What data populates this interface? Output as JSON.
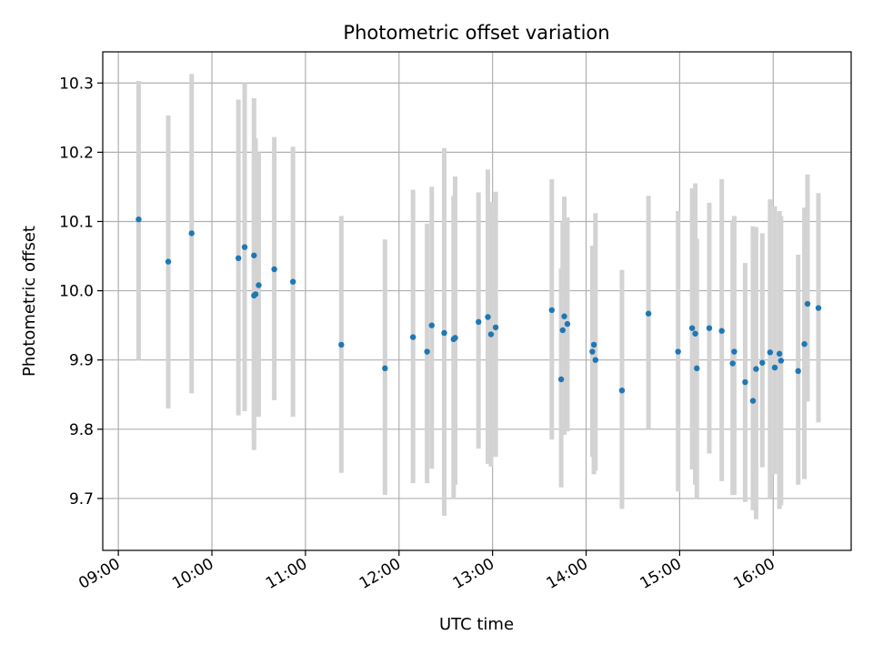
{
  "chart_data": {
    "type": "scatter",
    "title": "Photometric offset variation",
    "xlabel": "UTC time",
    "ylabel": "Photometric offset",
    "grid": true,
    "x_axis_kind": "time",
    "xlim": [
      "08:50",
      "16:50"
    ],
    "ylim": [
      9.625,
      10.345
    ],
    "x_ticks": [
      "09:00",
      "10:00",
      "11:00",
      "12:00",
      "13:00",
      "14:00",
      "15:00",
      "16:00"
    ],
    "y_ticks": [
      9.7,
      9.8,
      9.9,
      10.0,
      10.1,
      10.2,
      10.3
    ],
    "y_tick_labels": [
      "9.7",
      "9.8",
      "9.9",
      "10.0",
      "10.1",
      "10.2",
      "10.3"
    ],
    "colors": {
      "point": "#1f77b4",
      "errorbar": "#d3d3d3",
      "grid": "#b0b0b0"
    },
    "series": [
      {
        "x": [
          "09:13",
          "09:32",
          "09:47",
          "10:17",
          "10:21",
          "10:27",
          "10:27",
          "10:28",
          "10:30",
          "10:40",
          "10:52",
          "11:23",
          "11:51",
          "12:09",
          "12:18",
          "12:21",
          "12:29",
          "12:35",
          "12:36",
          "12:51",
          "12:57",
          "12:59",
          "13:02",
          "13:38",
          "13:44",
          "13:45",
          "13:46",
          "13:48",
          "14:04",
          "14:05",
          "14:06",
          "14:23",
          "14:40",
          "14:59",
          "15:08",
          "15:10",
          "15:11",
          "15:19",
          "15:27",
          "15:34",
          "15:35",
          "15:42",
          "15:47",
          "15:49",
          "15:53",
          "15:58",
          "16:01",
          "16:04",
          "16:05",
          "16:16",
          "16:20",
          "16:22",
          "16:29"
        ],
        "y": [
          10.103,
          10.042,
          10.083,
          10.047,
          10.063,
          10.051,
          9.993,
          9.995,
          10.008,
          10.031,
          10.013,
          9.922,
          9.888,
          9.933,
          9.912,
          9.95,
          9.939,
          9.93,
          9.932,
          9.955,
          9.962,
          9.937,
          9.947,
          9.972,
          9.872,
          9.943,
          9.963,
          9.952,
          9.912,
          9.922,
          9.9,
          9.856,
          9.967,
          9.912,
          9.946,
          9.938,
          9.888,
          9.946,
          9.942,
          9.895,
          9.912,
          9.868,
          9.841,
          9.887,
          9.896,
          9.911,
          9.889,
          9.909,
          9.899,
          9.884,
          9.923,
          9.981,
          9.975
        ],
        "yerr_low": [
          9.9,
          9.83,
          9.852,
          9.82,
          9.826,
          9.785,
          9.77,
          9.818,
          9.818,
          9.842,
          9.818,
          9.737,
          9.705,
          9.722,
          9.722,
          9.743,
          9.675,
          9.7,
          9.72,
          9.772,
          9.75,
          9.746,
          9.76,
          9.785,
          9.716,
          9.792,
          9.792,
          9.797,
          9.76,
          9.735,
          9.74,
          9.685,
          9.8,
          9.71,
          9.742,
          9.72,
          9.7,
          9.765,
          9.725,
          9.705,
          9.705,
          9.695,
          9.683,
          9.67,
          9.745,
          9.7,
          9.735,
          9.685,
          9.69,
          9.72,
          9.728,
          9.84,
          9.81
        ],
        "yerr_high": [
          10.303,
          10.253,
          10.313,
          10.276,
          10.3,
          10.278,
          10.205,
          10.22,
          10.2,
          10.222,
          10.208,
          10.108,
          10.074,
          10.146,
          10.097,
          10.15,
          10.206,
          10.137,
          10.165,
          10.142,
          10.175,
          10.128,
          10.143,
          10.161,
          10.032,
          10.1,
          10.136,
          10.106,
          10.065,
          10.065,
          10.112,
          10.03,
          10.137,
          10.115,
          10.148,
          10.155,
          10.075,
          10.127,
          10.161,
          10.102,
          10.108,
          10.04,
          10.093,
          10.092,
          10.083,
          10.132,
          10.122,
          10.115,
          10.108,
          10.052,
          10.12,
          10.168,
          10.141
        ]
      }
    ]
  }
}
